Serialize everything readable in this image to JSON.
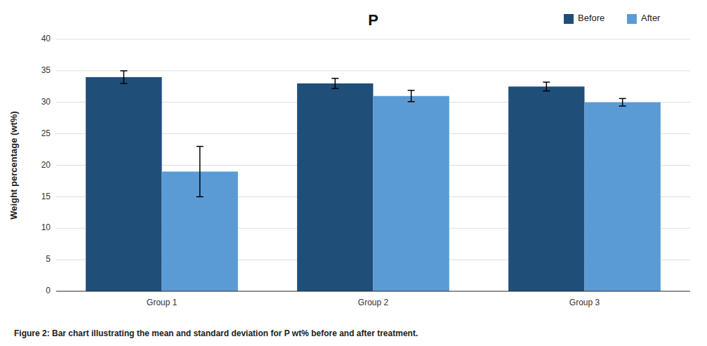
{
  "chart_data": {
    "type": "bar",
    "categories": [
      "Group 1",
      "Group 2",
      "Group 3"
    ],
    "series": [
      {
        "name": "Before",
        "color": "#1F4E79",
        "values": [
          34.0,
          33.0,
          32.5
        ],
        "errors": [
          1.0,
          0.8,
          0.7
        ]
      },
      {
        "name": "After",
        "color": "#5B9BD5",
        "values": [
          19.0,
          31.0,
          30.0
        ],
        "errors": [
          4.0,
          0.9,
          0.6
        ]
      }
    ],
    "ylabel": "Weight percentage (wt%)",
    "ylim": [
      0,
      40
    ],
    "yticks": [
      0,
      5,
      10,
      15,
      20,
      25,
      30,
      35,
      40
    ],
    "annotation": "P",
    "caption": "Figure 2: Bar chart illustrating the mean and standard deviation for P wt% before and after treatment.",
    "grid": true,
    "legend": "upper right"
  }
}
